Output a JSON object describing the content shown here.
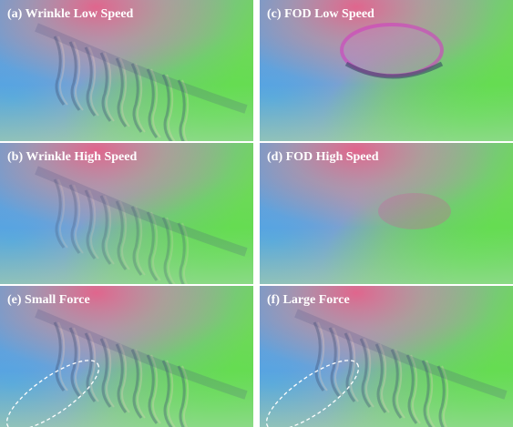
{
  "rows": [
    [
      "(a) Wrinkle Low Speed",
      "(c) FOD Low Speed"
    ],
    [
      "(b) Wrinkle High Speed",
      "(d) FOD High Speed"
    ],
    [
      "(e) Small Force",
      "(f) Large Force"
    ]
  ]
}
